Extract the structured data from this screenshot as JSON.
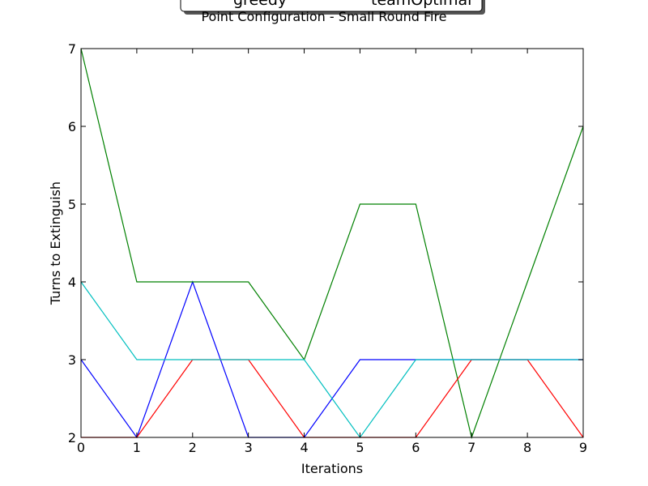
{
  "chart_data": {
    "type": "line",
    "title": "Point Configuration - Small Round Fire",
    "xlabel": "Iterations",
    "ylabel": "Turns to Extinguish",
    "xlim": [
      0,
      9
    ],
    "ylim": [
      2,
      7
    ],
    "x": [
      0,
      1,
      2,
      3,
      4,
      5,
      6,
      7,
      8,
      9
    ],
    "xticks": [
      "0",
      "1",
      "2",
      "3",
      "4",
      "5",
      "6",
      "7",
      "8",
      "9"
    ],
    "yticks": [
      "2",
      "3",
      "4",
      "5",
      "6",
      "7"
    ],
    "grid": false,
    "legend": {
      "placement": "top-center",
      "entries": [
        "greedy",
        "teamOptimal"
      ]
    },
    "series": [
      {
        "color": "#0000ff",
        "values": [
          3,
          2,
          4,
          2,
          2,
          3,
          3,
          3,
          3,
          3
        ]
      },
      {
        "color": "#008000",
        "values": [
          7,
          4,
          4,
          4,
          3,
          5,
          5,
          2,
          4,
          6
        ]
      },
      {
        "color": "#ff0000",
        "values": [
          2,
          2,
          3,
          3,
          2,
          2,
          2,
          3,
          3,
          2
        ]
      },
      {
        "color": "#00bfbf",
        "values": [
          4,
          3,
          3,
          3,
          3,
          2,
          3,
          3,
          3,
          3
        ]
      }
    ]
  }
}
